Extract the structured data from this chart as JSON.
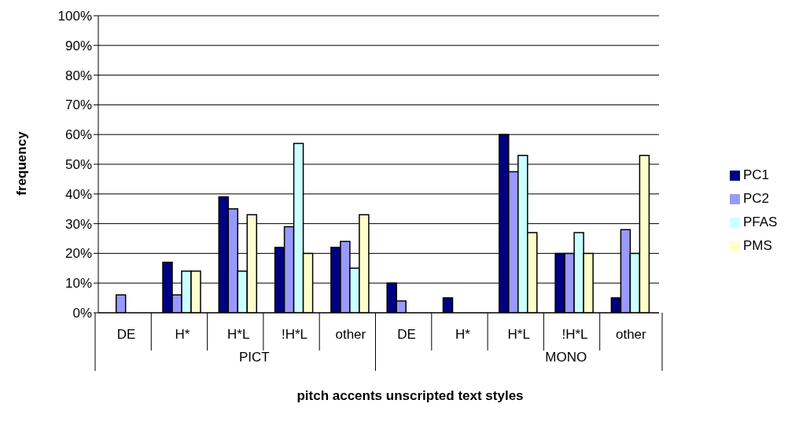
{
  "chart_data": {
    "type": "bar",
    "xlabel": "pitch accents unscripted text styles",
    "ylabel": "frequency",
    "categories": [
      "DE",
      "H*",
      "H*L",
      "!H*L",
      "other",
      "DE",
      "H*",
      "H*L",
      "!H*L",
      "other"
    ],
    "annotations": [
      "PICT",
      "MONO"
    ],
    "series": [
      {
        "name": "PC1",
        "color": "#000080",
        "values": [
          0,
          17,
          39,
          22,
          22,
          10,
          5,
          60,
          20,
          5
        ]
      },
      {
        "name": "PC2",
        "color": "#9999ff",
        "values": [
          6,
          6,
          35,
          29,
          24,
          4,
          0,
          47.5,
          20,
          28
        ]
      },
      {
        "name": "PFAS",
        "color": "#ccffff",
        "values": [
          0,
          14,
          14,
          57,
          15,
          0,
          0,
          53,
          27,
          20
        ]
      },
      {
        "name": "PMS",
        "color": "#ffffcc",
        "values": [
          0,
          14,
          33,
          20,
          33,
          0,
          0,
          27,
          20,
          53
        ]
      }
    ],
    "ylim": [
      0,
      100
    ],
    "yticks": [
      {
        "value": 0,
        "label": "0%"
      },
      {
        "value": 10,
        "label": "10%"
      },
      {
        "value": 20,
        "label": "20%"
      },
      {
        "value": 30,
        "label": "30%"
      },
      {
        "value": 40,
        "label": "40%"
      },
      {
        "value": 50,
        "label": "50%"
      },
      {
        "value": 60,
        "label": "60%"
      },
      {
        "value": 70,
        "label": "70%"
      },
      {
        "value": 80,
        "label": "80%"
      },
      {
        "value": 90,
        "label": "90%"
      },
      {
        "value": 100,
        "label": "100%"
      }
    ],
    "grid": "y",
    "legend": "right"
  }
}
